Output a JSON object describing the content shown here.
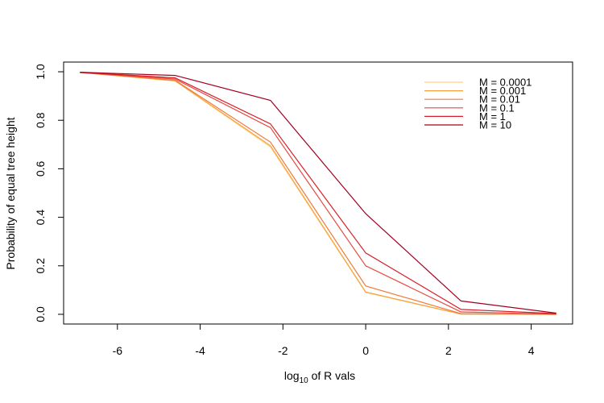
{
  "chart_data": {
    "type": "line",
    "title": "",
    "xlabel": {
      "main": "log",
      "sub": "10",
      "rest": " of R vals"
    },
    "ylabel": "Probability of equal tree height",
    "xlim": [
      -7.3,
      5.0
    ],
    "ylim": [
      -0.04,
      1.04
    ],
    "x_ticks": [
      -6,
      -4,
      -2,
      0,
      2,
      4
    ],
    "x_tick_labels": [
      "-6",
      "-4",
      "-2",
      "0",
      "2",
      "4"
    ],
    "y_ticks": [
      0.0,
      0.2,
      0.4,
      0.6,
      0.8,
      1.0
    ],
    "y_tick_labels": [
      "0.0",
      "0.2",
      "0.4",
      "0.6",
      "0.8",
      "1.0"
    ],
    "grid": false,
    "legend_position": "top-right",
    "x": [
      -6.9078,
      -4.6052,
      -2.3026,
      0.0,
      2.3026,
      4.6052
    ],
    "series": [
      {
        "name": "M = 0.0001",
        "color": "#FFD27F",
        "values": [
          0.997,
          0.962,
          0.69,
          0.09,
          0.001,
          0.0
        ]
      },
      {
        "name": "M = 0.001",
        "color": "#F7A23F",
        "values": [
          0.997,
          0.963,
          0.695,
          0.092,
          0.001,
          0.0
        ]
      },
      {
        "name": "M = 0.01",
        "color": "#F07B3B",
        "values": [
          0.997,
          0.965,
          0.71,
          0.117,
          0.003,
          0.0
        ]
      },
      {
        "name": "M = 0.1",
        "color": "#E8483E",
        "values": [
          0.997,
          0.97,
          0.77,
          0.2,
          0.01,
          0.001
        ]
      },
      {
        "name": "M = 1",
        "color": "#D61F28",
        "values": [
          0.998,
          0.975,
          0.785,
          0.253,
          0.02,
          0.003
        ]
      },
      {
        "name": "M = 10",
        "color": "#A30020",
        "values": [
          0.998,
          0.985,
          0.882,
          0.415,
          0.055,
          0.005
        ]
      }
    ]
  }
}
